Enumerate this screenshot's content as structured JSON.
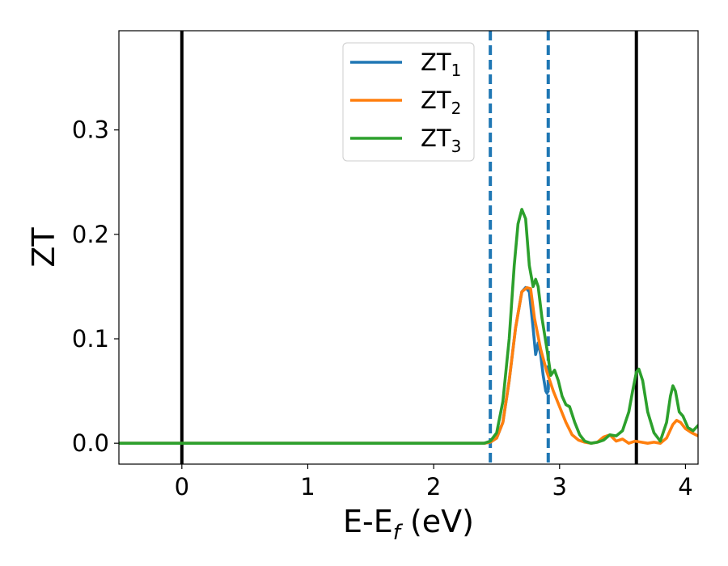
{
  "chart_data": {
    "type": "line",
    "xlabel": {
      "main": "E-E",
      "sub": "f",
      "unit": " (eV)"
    },
    "ylabel": "ZT",
    "xlim": [
      -0.5,
      4.1
    ],
    "ylim": [
      -0.02,
      0.395
    ],
    "xticks": [
      0,
      1,
      2,
      3,
      4
    ],
    "xtick_labels": [
      "0",
      "1",
      "2",
      "3",
      "4"
    ],
    "yticks": [
      0.0,
      0.1,
      0.2,
      0.3
    ],
    "ytick_labels": [
      "0.0",
      "0.1",
      "0.2",
      "0.3"
    ],
    "grid": false,
    "legend_position": "top-center",
    "vlines": [
      {
        "x": 0.0,
        "style": "solid",
        "color": "#000000"
      },
      {
        "x": 2.45,
        "style": "dashed",
        "color": "#1f77b4"
      },
      {
        "x": 2.91,
        "style": "dashed",
        "color": "#1f77b4"
      },
      {
        "x": 3.61,
        "style": "solid",
        "color": "#000000"
      }
    ],
    "series": [
      {
        "name": "ZT",
        "sub": "1",
        "color": "#1f77b4",
        "x": [
          -0.5,
          2.4,
          2.45,
          2.5,
          2.55,
          2.6,
          2.65,
          2.7,
          2.73,
          2.76,
          2.79,
          2.81,
          2.83,
          2.85,
          2.87,
          2.89,
          2.9,
          2.91
        ],
        "y": [
          0.0,
          0.0,
          0.001,
          0.005,
          0.02,
          0.06,
          0.11,
          0.145,
          0.149,
          0.145,
          0.11,
          0.085,
          0.096,
          0.085,
          0.065,
          0.05,
          0.048,
          0.05
        ]
      },
      {
        "name": "ZT",
        "sub": "2",
        "color": "#ff7f0e",
        "x": [
          -0.5,
          2.4,
          2.45,
          2.5,
          2.55,
          2.6,
          2.65,
          2.7,
          2.74,
          2.77,
          2.8,
          2.85,
          2.9,
          2.95,
          3.0,
          3.05,
          3.1,
          3.15,
          3.2,
          3.25,
          3.3,
          3.35,
          3.4,
          3.45,
          3.5,
          3.55,
          3.6,
          3.65,
          3.7,
          3.75,
          3.8,
          3.85,
          3.9,
          3.93,
          3.96,
          4.0,
          4.05,
          4.1
        ],
        "y": [
          0.0,
          0.0,
          0.001,
          0.005,
          0.02,
          0.06,
          0.11,
          0.145,
          0.149,
          0.148,
          0.12,
          0.09,
          0.068,
          0.05,
          0.035,
          0.02,
          0.008,
          0.003,
          0.001,
          0.0,
          0.001,
          0.006,
          0.008,
          0.002,
          0.004,
          0.0,
          0.002,
          0.001,
          0.0,
          0.001,
          0.0,
          0.005,
          0.018,
          0.022,
          0.02,
          0.014,
          0.01,
          0.007
        ]
      },
      {
        "name": "ZT",
        "sub": "3",
        "color": "#2ca02c",
        "x": [
          -0.5,
          2.4,
          2.45,
          2.5,
          2.55,
          2.6,
          2.64,
          2.67,
          2.7,
          2.73,
          2.76,
          2.79,
          2.81,
          2.83,
          2.86,
          2.9,
          2.93,
          2.96,
          2.99,
          3.02,
          3.05,
          3.08,
          3.12,
          3.16,
          3.2,
          3.25,
          3.3,
          3.35,
          3.4,
          3.45,
          3.5,
          3.55,
          3.58,
          3.61,
          3.63,
          3.66,
          3.7,
          3.75,
          3.8,
          3.85,
          3.88,
          3.9,
          3.92,
          3.95,
          3.98,
          4.02,
          4.06,
          4.1
        ],
        "y": [
          0.0,
          0.0,
          0.002,
          0.01,
          0.04,
          0.1,
          0.17,
          0.21,
          0.224,
          0.215,
          0.17,
          0.15,
          0.157,
          0.15,
          0.12,
          0.09,
          0.065,
          0.07,
          0.06,
          0.045,
          0.037,
          0.035,
          0.02,
          0.008,
          0.002,
          0.0,
          0.001,
          0.003,
          0.008,
          0.007,
          0.012,
          0.03,
          0.05,
          0.068,
          0.071,
          0.06,
          0.03,
          0.01,
          0.002,
          0.02,
          0.045,
          0.055,
          0.05,
          0.03,
          0.026,
          0.015,
          0.012,
          0.017
        ]
      }
    ]
  }
}
